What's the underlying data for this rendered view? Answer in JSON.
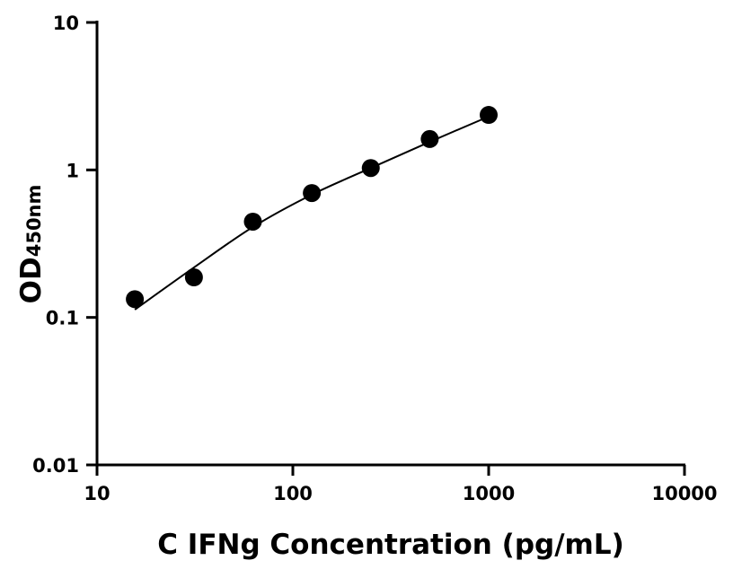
{
  "chart_data": {
    "type": "scatter",
    "title": "",
    "xlabel": "C IFNg Concentration (pg/mL)",
    "ylabel": "OD",
    "ylabel_subscript": "450nm",
    "x_scale": "log",
    "y_scale": "log",
    "xlim": [
      10,
      10000
    ],
    "ylim": [
      0.01,
      10
    ],
    "x_ticks": [
      "10",
      "100",
      "1000",
      "10000"
    ],
    "y_ticks": [
      "0.01",
      "0.1",
      "1",
      "10"
    ],
    "grid": false,
    "series": [
      {
        "x": [
          15.6,
          31.25,
          62.5,
          125,
          250,
          500,
          1000
        ],
        "y": [
          0.133,
          0.187,
          0.446,
          0.697,
          1.03,
          1.62,
          2.36
        ],
        "marker": "circle",
        "color": "#000000"
      }
    ],
    "fit_curve": {
      "x": [
        15.6,
        31.25,
        62.5,
        125,
        250,
        500,
        1000
      ],
      "y": [
        0.113,
        0.218,
        0.41,
        0.68,
        1.03,
        1.55,
        2.3
      ],
      "color": "#000000"
    }
  }
}
